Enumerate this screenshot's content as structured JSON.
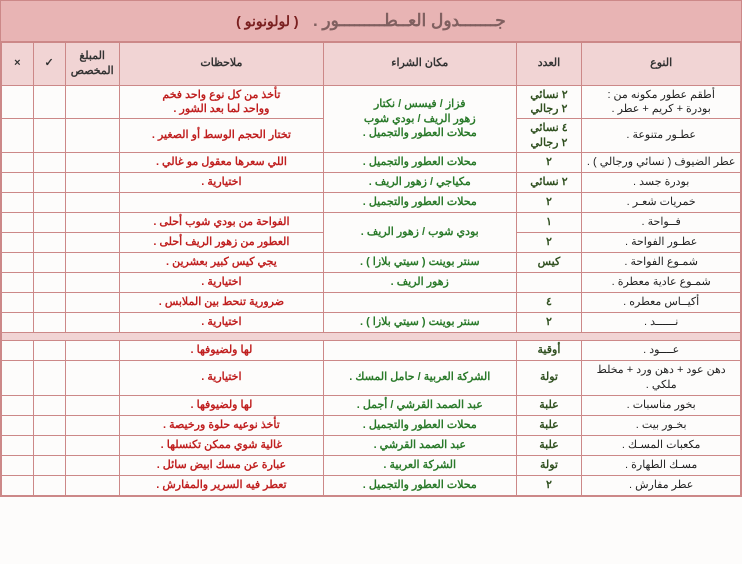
{
  "title": {
    "main": "جـــــــدول العــطـــــــــور .",
    "sub": "( لولونونو )"
  },
  "headers": {
    "type": "النوع",
    "count": "العدد",
    "place": "مكان الشراء",
    "notes": "ملاحظات",
    "budget": "المبلغ المخصص",
    "check": "✓",
    "x": "×"
  },
  "section1": [
    {
      "type": "أطقم عطور مكونه من :\nبودرة + كريم + عطر .",
      "count": "٢ نسائي\n٢ رجالي",
      "place": "فزاز / فيسس / نكتار\nزهور الريف / بودي شوب\nمحلات العطور والتجميل .",
      "notes": "تأخذ من كل نوع واحد فخم\nوواحد لما بعد الشور ."
    },
    {
      "type": "عطـور متنوعة .",
      "count": "٤ نسائي\n٢ رجالي",
      "place": "",
      "notes": "تختار الحجم الوسط أو الصغير ."
    },
    {
      "type": "عطر الضيوف ( نسائي ورجالي ) .",
      "count": "٢",
      "place": "محلات العطور والتجميل .",
      "notes": "اللي سعرها معقول مو غالي ."
    },
    {
      "type": "بودرة جسد .",
      "count": "٢ نسائي",
      "place": "مكياجي / زهور الريف .",
      "notes": "اختيارية ."
    },
    {
      "type": "خمريات شعـر .",
      "count": "٢",
      "place": "محلات العطور والتجميل .",
      "notes": ""
    },
    {
      "type": "فــواحة .",
      "count": "١",
      "place": "بودي شوب / زهور الريف .",
      "notes": "الفواحة من بودي شوب أحلى ."
    },
    {
      "type": "عطـور الفواحة .",
      "count": "٢",
      "place": "",
      "notes": "العطور من زهور الريف أحلى ."
    },
    {
      "type": "شمـوع الفواحة .",
      "count": "كيس",
      "place": "سنتر بوينت ( سيتي بلازا ) .",
      "notes": "يجي كيس كبير بعشرين ."
    },
    {
      "type": "شمـوع عادية معطرة .",
      "count": "",
      "place": "زهور الريف .",
      "notes": "اختيارية ."
    },
    {
      "type": "أكيــاس معطره .",
      "count": "٤",
      "place": "",
      "notes": "ضرورية تنحط بين الملابس ."
    },
    {
      "type": "نــــــد .",
      "count": "٢",
      "place": "سنتر بوينت ( سيتي بلازا ) .",
      "notes": "اختيارية ."
    }
  ],
  "section2": [
    {
      "type": "عــــود .",
      "count": "أوقية",
      "place": "",
      "notes": "لها ولضيوفها ."
    },
    {
      "type": "دهن عود + دهن ورد + مخلط ملكي .",
      "count": "تولة",
      "place": "الشركة العربية / حامل المسك .",
      "notes": "اختيارية ."
    },
    {
      "type": "بخور مناسبات .",
      "count": "علبة",
      "place": "عبد الصمد القرشي / أجمل .",
      "notes": "لها ولضيوفها ."
    },
    {
      "type": "بخـور بيت .",
      "count": "علبة",
      "place": "محلات العطور والتجميل .",
      "notes": "تأخذ نوعيه حلوة ورخيصة ."
    },
    {
      "type": "مكعبات المسـك .",
      "count": "علبة",
      "place": "عبد الصمد القرشي .",
      "notes": "غالية شوي ممكن تكنسلها ."
    },
    {
      "type": "مسـك الطهارة .",
      "count": "تولة",
      "place": "الشركة العربية .",
      "notes": "عبارة عن مسك ابيض سائل ."
    },
    {
      "type": "عطر مفارش .",
      "count": "٢",
      "place": "محلات العطور والتجميل .",
      "notes": "تعطر فيه السرير والمفارش ."
    }
  ]
}
